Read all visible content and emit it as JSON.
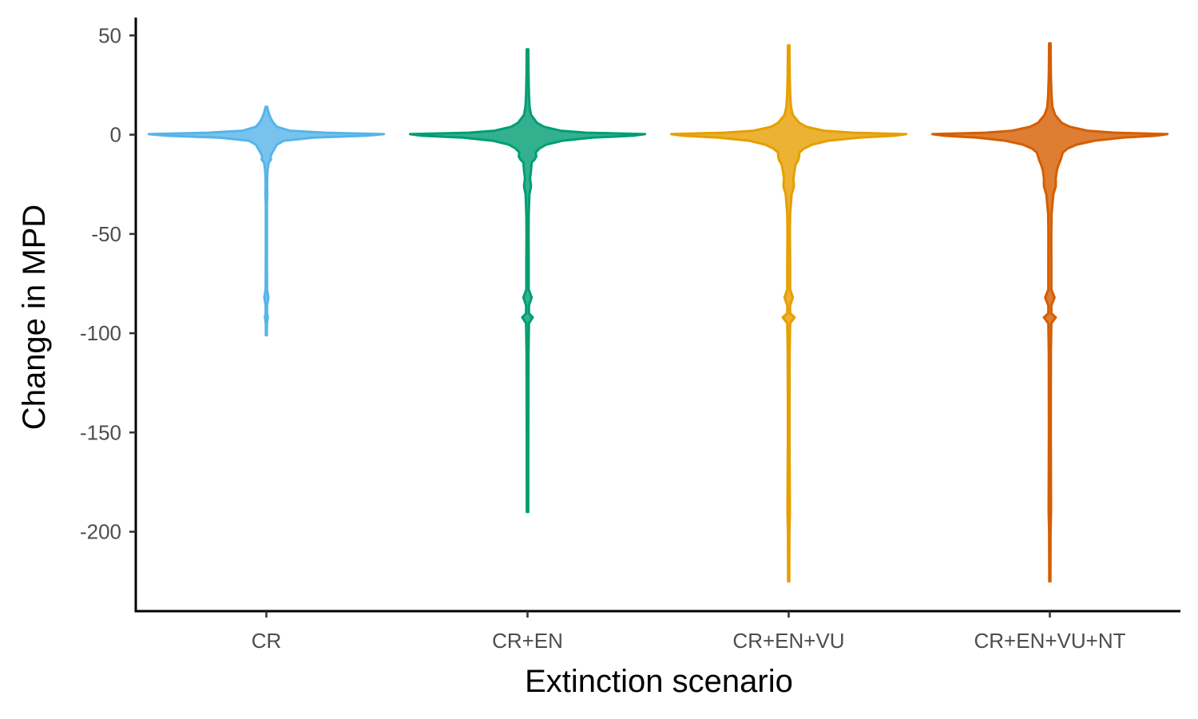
{
  "chart_data": {
    "type": "violin",
    "xlabel": "Extinction scenario",
    "ylabel": "Change in MPD",
    "ylim": [
      -240,
      59
    ],
    "yticks": [
      50,
      0,
      -50,
      -100,
      -150,
      -200
    ],
    "ytick_labels": [
      "50",
      "0",
      "-50",
      "-100",
      "-150",
      "-200"
    ],
    "grid": false,
    "legend": "none",
    "categories": [
      "CR",
      "CR+EN",
      "CR+EN+VU",
      "CR+EN+VU+NT"
    ],
    "series": [
      {
        "category": "CR",
        "color": "#56B4E9",
        "min": -101,
        "max": 14,
        "shape": [
          [
            14,
            0.006
          ],
          [
            12,
            0.015
          ],
          [
            10,
            0.025
          ],
          [
            8,
            0.04
          ],
          [
            6,
            0.06
          ],
          [
            4,
            0.09
          ],
          [
            2,
            0.2
          ],
          [
            1,
            0.5
          ],
          [
            0.3,
            1.0
          ],
          [
            -0.5,
            0.85
          ],
          [
            -1.5,
            0.4
          ],
          [
            -3,
            0.15
          ],
          [
            -5,
            0.09
          ],
          [
            -7,
            0.07
          ],
          [
            -9,
            0.05
          ],
          [
            -11,
            0.035
          ],
          [
            -12.5,
            0.04
          ],
          [
            -14,
            0.02
          ],
          [
            -17,
            0.012
          ],
          [
            -20,
            0.008
          ],
          [
            -25,
            0.006
          ],
          [
            -30,
            0.008
          ],
          [
            -35,
            0.005
          ],
          [
            -48,
            0.005
          ],
          [
            -60,
            0.005
          ],
          [
            -78,
            0.006
          ],
          [
            -82,
            0.018
          ],
          [
            -86,
            0.006
          ],
          [
            -90,
            0.006
          ],
          [
            -92,
            0.012
          ],
          [
            -95,
            0.005
          ],
          [
            -101,
            0.004
          ]
        ]
      },
      {
        "category": "CR+EN",
        "color": "#009E73",
        "min": -190,
        "max": 43,
        "shape": [
          [
            43,
            0.007
          ],
          [
            30,
            0.009
          ],
          [
            20,
            0.012
          ],
          [
            14,
            0.018
          ],
          [
            10,
            0.03
          ],
          [
            6,
            0.08
          ],
          [
            4,
            0.14
          ],
          [
            2,
            0.28
          ],
          [
            1,
            0.5
          ],
          [
            0.3,
            1.0
          ],
          [
            -0.5,
            0.9
          ],
          [
            -1.5,
            0.55
          ],
          [
            -3,
            0.3
          ],
          [
            -5,
            0.16
          ],
          [
            -7,
            0.1
          ],
          [
            -9,
            0.07
          ],
          [
            -11,
            0.075
          ],
          [
            -12.5,
            0.06
          ],
          [
            -14,
            0.035
          ],
          [
            -18,
            0.03
          ],
          [
            -22,
            0.022
          ],
          [
            -26,
            0.03
          ],
          [
            -30,
            0.016
          ],
          [
            -40,
            0.01
          ],
          [
            -50,
            0.009
          ],
          [
            -65,
            0.01
          ],
          [
            -78,
            0.01
          ],
          [
            -82,
            0.035
          ],
          [
            -86,
            0.012
          ],
          [
            -90,
            0.012
          ],
          [
            -92,
            0.045
          ],
          [
            -95,
            0.012
          ],
          [
            -110,
            0.008
          ],
          [
            -150,
            0.007
          ],
          [
            -190,
            0.006
          ]
        ]
      },
      {
        "category": "CR+EN+VU",
        "color": "#E69F00",
        "min": -225,
        "max": 45,
        "shape": [
          [
            45,
            0.006
          ],
          [
            30,
            0.009
          ],
          [
            20,
            0.013
          ],
          [
            14,
            0.02
          ],
          [
            10,
            0.035
          ],
          [
            6,
            0.09
          ],
          [
            4,
            0.15
          ],
          [
            2,
            0.3
          ],
          [
            1,
            0.55
          ],
          [
            0.3,
            1.0
          ],
          [
            -0.5,
            0.9
          ],
          [
            -1.5,
            0.6
          ],
          [
            -3,
            0.34
          ],
          [
            -5,
            0.2
          ],
          [
            -7,
            0.13
          ],
          [
            -9,
            0.09
          ],
          [
            -11,
            0.09
          ],
          [
            -13,
            0.08
          ],
          [
            -15,
            0.06
          ],
          [
            -18,
            0.05
          ],
          [
            -22,
            0.04
          ],
          [
            -26,
            0.045
          ],
          [
            -30,
            0.025
          ],
          [
            -40,
            0.012
          ],
          [
            -50,
            0.01
          ],
          [
            -65,
            0.012
          ],
          [
            -78,
            0.012
          ],
          [
            -82,
            0.035
          ],
          [
            -86,
            0.012
          ],
          [
            -90,
            0.012
          ],
          [
            -92,
            0.05
          ],
          [
            -95,
            0.012
          ],
          [
            -110,
            0.008
          ],
          [
            -150,
            0.007
          ],
          [
            -190,
            0.01
          ],
          [
            -200,
            0.006
          ],
          [
            -225,
            0.005
          ]
        ]
      },
      {
        "category": "CR+EN+VU+NT",
        "color": "#D55E00",
        "min": -225,
        "max": 46,
        "shape": [
          [
            46,
            0.006
          ],
          [
            30,
            0.009
          ],
          [
            20,
            0.014
          ],
          [
            14,
            0.022
          ],
          [
            10,
            0.045
          ],
          [
            6,
            0.1
          ],
          [
            4,
            0.17
          ],
          [
            2,
            0.32
          ],
          [
            1,
            0.55
          ],
          [
            0.3,
            1.0
          ],
          [
            -0.5,
            0.9
          ],
          [
            -1.5,
            0.62
          ],
          [
            -3,
            0.38
          ],
          [
            -5,
            0.23
          ],
          [
            -7,
            0.15
          ],
          [
            -9,
            0.11
          ],
          [
            -11,
            0.1
          ],
          [
            -13,
            0.09
          ],
          [
            -15,
            0.075
          ],
          [
            -18,
            0.06
          ],
          [
            -22,
            0.05
          ],
          [
            -26,
            0.05
          ],
          [
            -30,
            0.03
          ],
          [
            -40,
            0.014
          ],
          [
            -50,
            0.012
          ],
          [
            -65,
            0.013
          ],
          [
            -78,
            0.013
          ],
          [
            -82,
            0.04
          ],
          [
            -86,
            0.013
          ],
          [
            -90,
            0.013
          ],
          [
            -92,
            0.05
          ],
          [
            -95,
            0.013
          ],
          [
            -110,
            0.009
          ],
          [
            -150,
            0.008
          ],
          [
            -190,
            0.01
          ],
          [
            -200,
            0.006
          ],
          [
            -225,
            0.005
          ]
        ]
      }
    ]
  }
}
